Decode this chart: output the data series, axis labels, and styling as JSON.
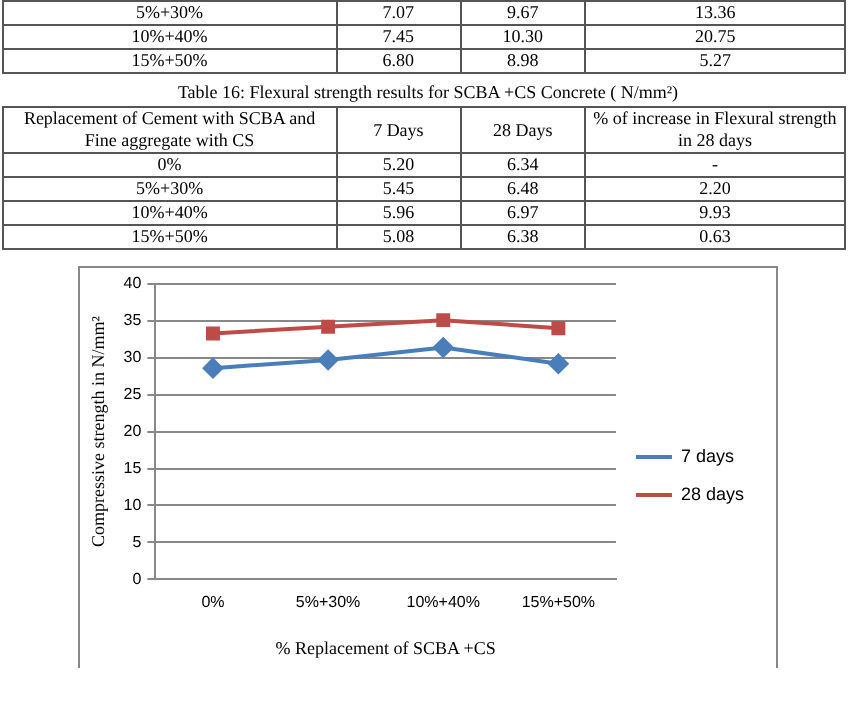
{
  "chart_data": [
    {
      "type": "other",
      "annotations": [
        "5%+30%",
        "7.07",
        "9.67",
        "13.36",
        "10%+40%",
        "7.45",
        "10.30",
        "20.75",
        "15%+50%",
        "6.80",
        "8.98",
        "5.27"
      ]
    },
    {
      "type": "other",
      "title": "Table 16: Flexural strength results for SCBA +CS  Concrete  ( N/mm²)",
      "annotations": [
        "Replacement of Cement with SCBA and Fine aggregate with CS",
        "7 Days",
        "28 Days",
        "% of increase in Flexural strength in 28 days",
        "0%",
        "5.20",
        "6.34",
        "-",
        "5%+30%",
        "5.45",
        "6.48",
        "2.20",
        "10%+40%",
        "5.96",
        "6.97",
        "9.93",
        "15%+50%",
        "5.08",
        "6.38",
        "0.63"
      ]
    },
    {
      "type": "line",
      "xlabel": "% Replacement of SCBA +CS",
      "ylabel": "Compressive strength in N/mm²",
      "categories": [
        "0%",
        "5%+30%",
        "10%+40%",
        "15%+50%"
      ],
      "series": [
        {
          "name": "7 days",
          "color": "#4a7ebb",
          "marker": "diamond",
          "values": [
            28.6,
            29.7,
            31.4,
            29.2
          ]
        },
        {
          "name": "28 days",
          "color": "#be4b48",
          "marker": "square",
          "values": [
            33.3,
            34.2,
            35.1,
            34.0
          ]
        }
      ],
      "ylim": [
        0,
        40
      ],
      "yticks": [
        0,
        5,
        10,
        15,
        20,
        25,
        30,
        35,
        40
      ],
      "grid": "y",
      "legend": "right"
    }
  ]
}
